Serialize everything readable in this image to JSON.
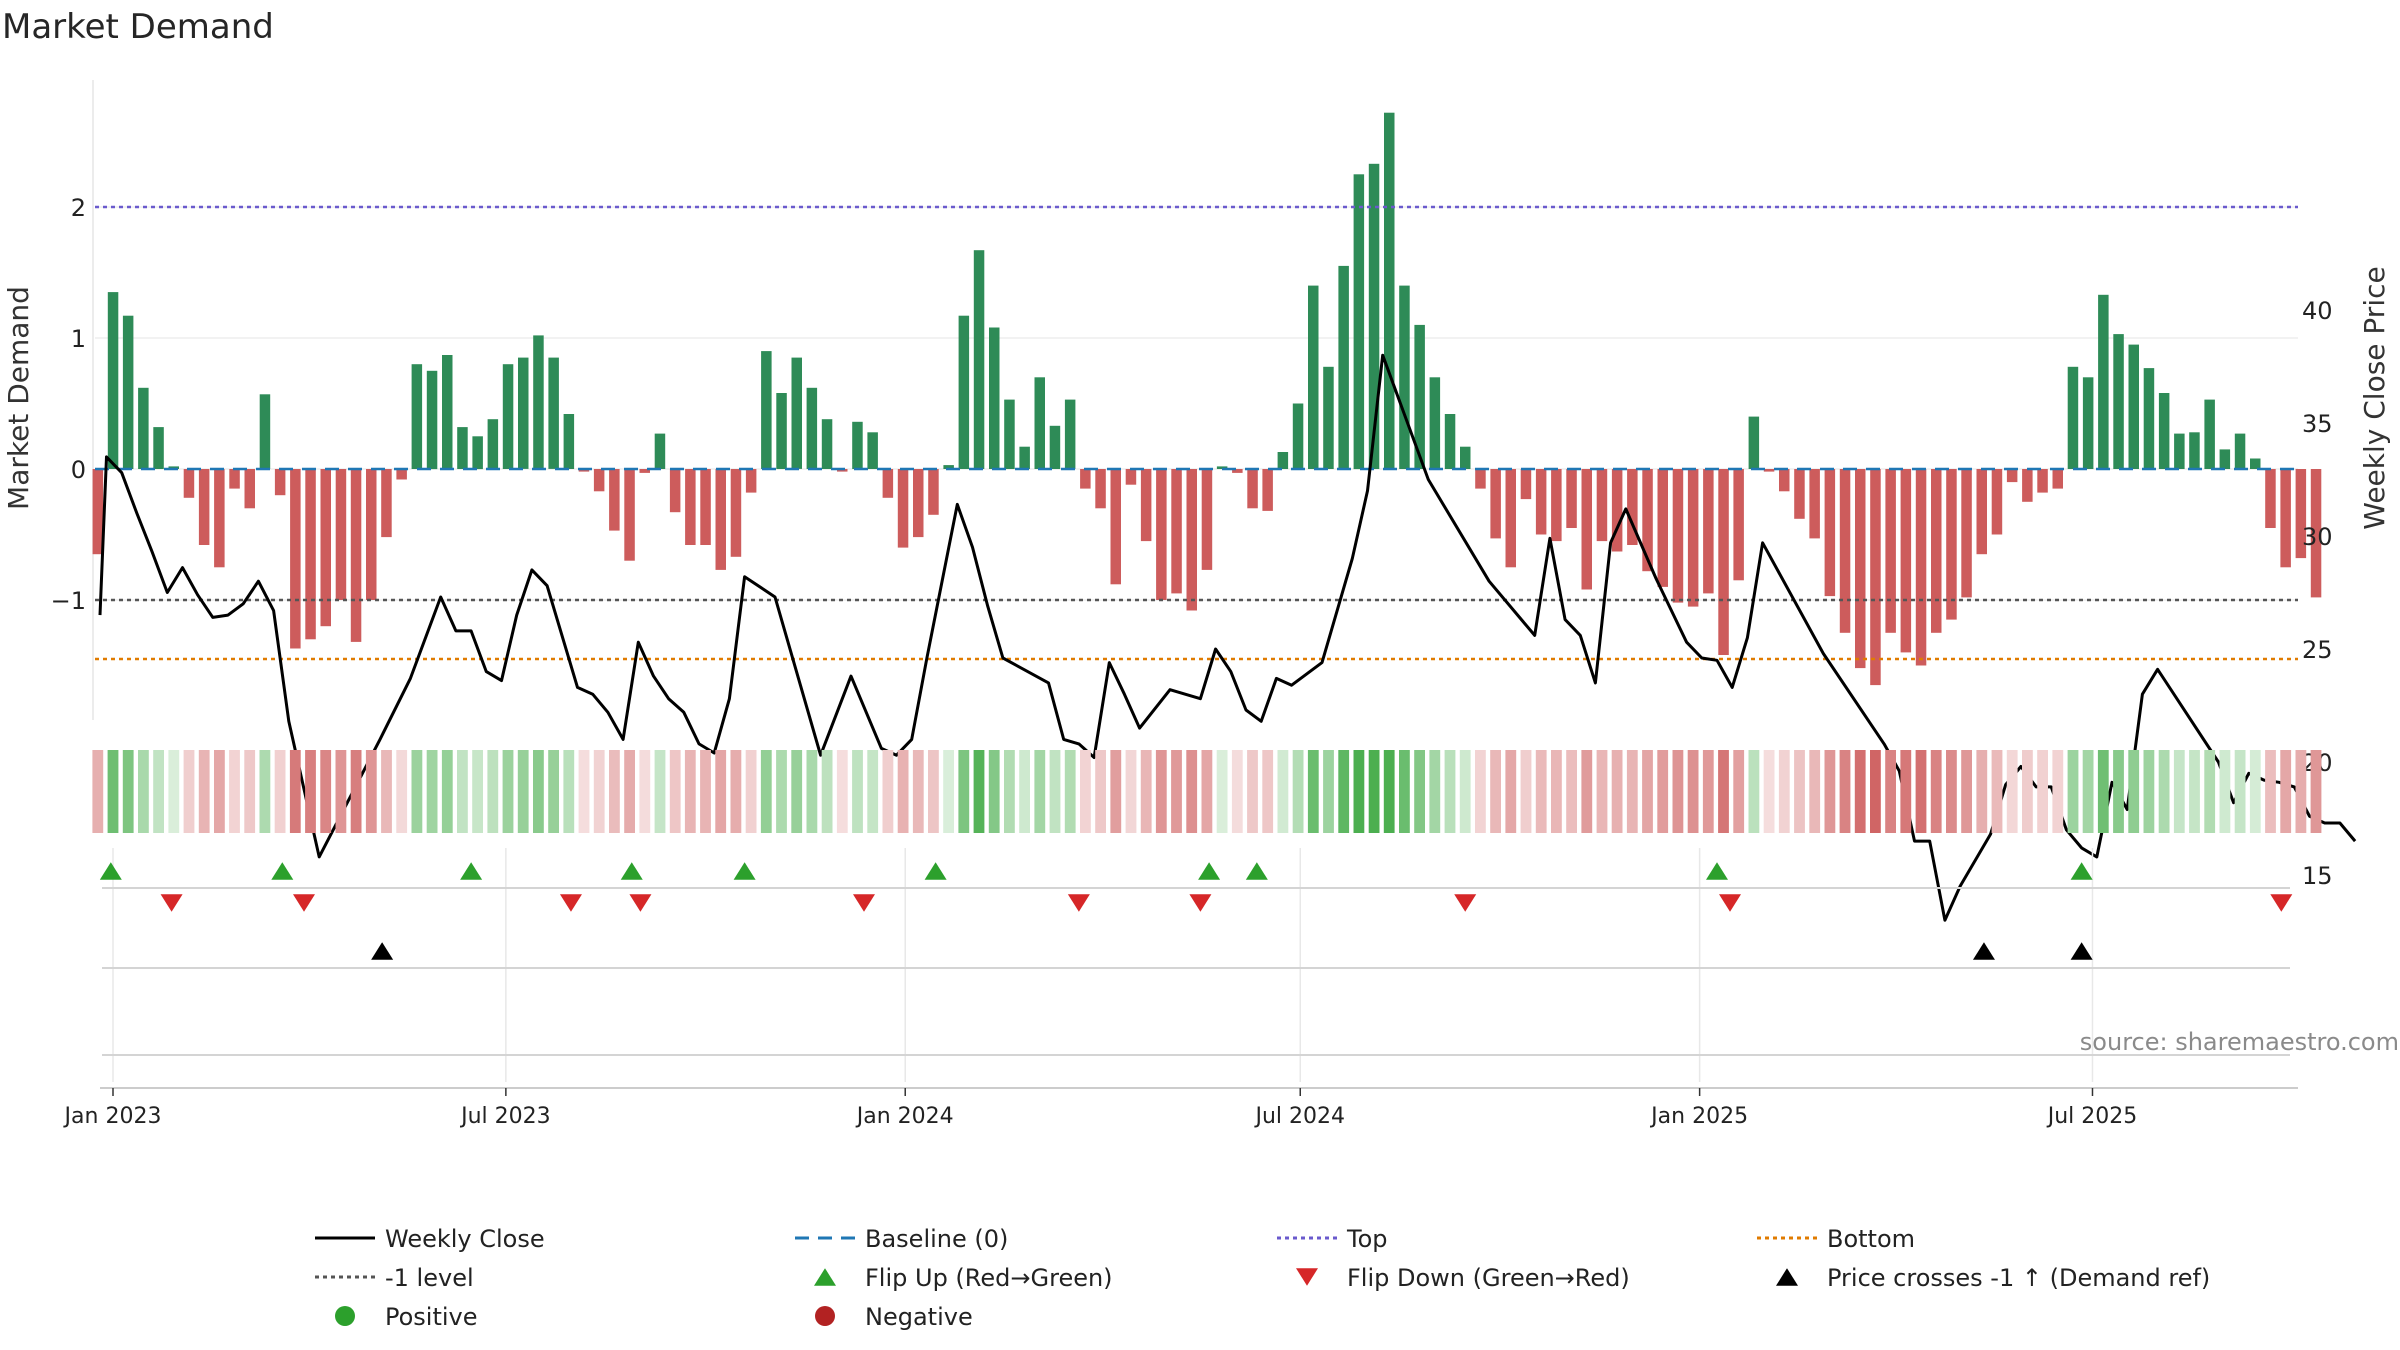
{
  "chart_data": {
    "type": "bar",
    "title": "Market Demand",
    "ylabel_left": "Market Demand",
    "ylabel_right": "Weekly Close Price",
    "yticks_left": [
      "2",
      "1",
      "0",
      "−1"
    ],
    "yticks_left_values": [
      2,
      1,
      0,
      -1
    ],
    "yticks_right": [
      "40",
      "35",
      "30",
      "25",
      "20",
      "15"
    ],
    "yticks_right_values": [
      40,
      35,
      30,
      25,
      20,
      15
    ],
    "ylim_left": [
      -1.9,
      2.95
    ],
    "ylim_right": [
      12,
      40
    ],
    "reference_lines": {
      "top": 2.0,
      "minus_one": -1.0,
      "bottom": -1.45,
      "baseline": 0
    },
    "x_start": "2023-01-01",
    "x_end": "2025-09-30",
    "date_ticks": [
      {
        "label": "Jan 2023",
        "date": "2023-01-01"
      },
      {
        "label": "Jul 2023",
        "date": "2023-07-01"
      },
      {
        "label": "Jan 2024",
        "date": "2024-01-01"
      },
      {
        "label": "Jul 2024",
        "date": "2024-07-01"
      },
      {
        "label": "Jan 2025",
        "date": "2025-01-01"
      },
      {
        "label": "Jul 2025",
        "date": "2025-07-01"
      }
    ],
    "demand_series_start": "2022-12-25",
    "demand_weekly": [
      -0.65,
      1.35,
      1.17,
      0.62,
      0.32,
      0.02,
      -0.22,
      -0.58,
      -0.75,
      -0.15,
      -0.3,
      0.57,
      -0.2,
      -1.37,
      -1.3,
      -1.2,
      -1.0,
      -1.32,
      -1.0,
      -0.52,
      -0.08,
      0.8,
      0.75,
      0.87,
      0.32,
      0.25,
      0.38,
      0.8,
      0.85,
      1.02,
      0.85,
      0.42,
      -0.02,
      -0.17,
      -0.47,
      -0.7,
      -0.03,
      0.27,
      -0.33,
      -0.58,
      -0.58,
      -0.77,
      -0.67,
      -0.18,
      0.9,
      0.58,
      0.85,
      0.62,
      0.38,
      -0.02,
      0.36,
      0.28,
      -0.22,
      -0.6,
      -0.52,
      -0.35,
      0.03,
      1.17,
      1.67,
      1.08,
      0.53,
      0.17,
      0.7,
      0.33,
      0.53,
      -0.15,
      -0.3,
      -0.88,
      -0.12,
      -0.55,
      -1.0,
      -0.95,
      -1.08,
      -0.77,
      0.02,
      -0.03,
      -0.3,
      -0.32,
      0.13,
      0.5,
      1.4,
      0.78,
      1.55,
      2.25,
      2.33,
      2.72,
      1.4,
      1.1,
      0.7,
      0.42,
      0.17,
      -0.15,
      -0.53,
      -0.75,
      -0.23,
      -0.5,
      -0.55,
      -0.45,
      -0.92,
      -0.55,
      -0.63,
      -0.58,
      -0.78,
      -0.9,
      -1.02,
      -1.05,
      -0.95,
      -1.42,
      -0.85,
      0.4,
      -0.02,
      -0.17,
      -0.38,
      -0.53,
      -0.97,
      -1.25,
      -1.52,
      -1.65,
      -1.25,
      -1.4,
      -1.5,
      -1.25,
      -1.15,
      -0.98,
      -0.65,
      -0.5,
      -0.1,
      -0.25,
      -0.18,
      -0.15,
      0.78,
      0.7,
      1.33,
      1.03,
      0.95,
      0.77,
      0.58,
      0.27,
      0.28,
      0.53,
      0.15,
      0.27,
      0.08,
      -0.45,
      -0.75,
      -0.68,
      -0.98
    ],
    "close_points": [
      [
        "2022-12-26",
        26.5
      ],
      [
        "2022-12-29",
        33.5
      ],
      [
        "2023-01-05",
        32.8
      ],
      [
        "2023-01-12",
        31.0
      ],
      [
        "2023-01-19",
        29.3
      ],
      [
        "2023-01-26",
        27.5
      ],
      [
        "2023-02-02",
        28.6
      ],
      [
        "2023-02-09",
        27.4
      ],
      [
        "2023-02-16",
        26.4
      ],
      [
        "2023-02-23",
        26.5
      ],
      [
        "2023-03-02",
        27.0
      ],
      [
        "2023-03-09",
        28.0
      ],
      [
        "2023-03-16",
        26.7
      ],
      [
        "2023-03-23",
        21.8
      ],
      [
        "2023-04-06",
        15.8
      ],
      [
        "2023-05-04",
        21.0
      ],
      [
        "2023-05-18",
        23.7
      ],
      [
        "2023-06-01",
        27.3
      ],
      [
        "2023-06-08",
        25.8
      ],
      [
        "2023-06-15",
        25.8
      ],
      [
        "2023-06-22",
        24.0
      ],
      [
        "2023-06-29",
        23.6
      ],
      [
        "2023-07-06",
        26.5
      ],
      [
        "2023-07-13",
        28.5
      ],
      [
        "2023-07-20",
        27.8
      ],
      [
        "2023-08-03",
        23.3
      ],
      [
        "2023-08-10",
        23.0
      ],
      [
        "2023-08-17",
        22.2
      ],
      [
        "2023-08-24",
        21.0
      ],
      [
        "2023-08-31",
        25.3
      ],
      [
        "2023-09-07",
        23.8
      ],
      [
        "2023-09-14",
        22.8
      ],
      [
        "2023-09-21",
        22.2
      ],
      [
        "2023-09-28",
        20.8
      ],
      [
        "2023-10-05",
        20.4
      ],
      [
        "2023-10-12",
        22.8
      ],
      [
        "2023-10-19",
        28.2
      ],
      [
        "2023-11-02",
        27.3
      ],
      [
        "2023-11-23",
        20.3
      ],
      [
        "2023-12-07",
        23.8
      ],
      [
        "2023-12-21",
        20.6
      ],
      [
        "2023-12-28",
        20.3
      ],
      [
        "2024-01-04",
        21.0
      ],
      [
        "2024-01-11",
        24.6
      ],
      [
        "2024-01-25",
        31.4
      ],
      [
        "2024-02-01",
        29.5
      ],
      [
        "2024-02-08",
        26.9
      ],
      [
        "2024-02-15",
        24.6
      ],
      [
        "2024-03-07",
        23.5
      ],
      [
        "2024-03-14",
        21.0
      ],
      [
        "2024-03-21",
        20.8
      ],
      [
        "2024-03-28",
        20.2
      ],
      [
        "2024-04-04",
        24.4
      ],
      [
        "2024-04-11",
        23.0
      ],
      [
        "2024-04-18",
        21.5
      ],
      [
        "2024-05-02",
        23.2
      ],
      [
        "2024-05-16",
        22.8
      ],
      [
        "2024-05-23",
        25.0
      ],
      [
        "2024-05-30",
        24.0
      ],
      [
        "2024-06-06",
        22.3
      ],
      [
        "2024-06-13",
        21.8
      ],
      [
        "2024-06-20",
        23.7
      ],
      [
        "2024-06-27",
        23.4
      ],
      [
        "2024-07-11",
        24.4
      ],
      [
        "2024-07-25",
        29.0
      ],
      [
        "2024-08-01",
        32.0
      ],
      [
        "2024-08-08",
        38.0
      ],
      [
        "2024-08-29",
        32.5
      ],
      [
        "2024-09-26",
        28.0
      ],
      [
        "2024-10-17",
        25.6
      ],
      [
        "2024-10-24",
        29.9
      ],
      [
        "2024-10-31",
        26.3
      ],
      [
        "2024-11-07",
        25.6
      ],
      [
        "2024-11-14",
        23.5
      ],
      [
        "2024-11-21",
        29.7
      ],
      [
        "2024-11-28",
        31.2
      ],
      [
        "2024-12-12",
        28.1
      ],
      [
        "2024-12-26",
        25.3
      ],
      [
        "2025-01-02",
        24.6
      ],
      [
        "2025-01-09",
        24.5
      ],
      [
        "2025-01-16",
        23.3
      ],
      [
        "2025-01-23",
        25.5
      ],
      [
        "2025-01-30",
        29.7
      ],
      [
        "2025-02-27",
        24.8
      ],
      [
        "2025-03-27",
        20.8
      ],
      [
        "2025-04-03",
        19.6
      ],
      [
        "2025-04-10",
        16.5
      ],
      [
        "2025-04-17",
        16.5
      ],
      [
        "2025-04-24",
        13.0
      ],
      [
        "2025-05-01",
        14.5
      ],
      [
        "2025-05-15",
        16.8
      ],
      [
        "2025-05-22",
        19.0
      ],
      [
        "2025-05-29",
        19.8
      ],
      [
        "2025-06-05",
        18.9
      ],
      [
        "2025-06-12",
        18.9
      ],
      [
        "2025-06-19",
        17.0
      ],
      [
        "2025-06-26",
        16.2
      ],
      [
        "2025-07-03",
        15.8
      ],
      [
        "2025-07-10",
        19.1
      ],
      [
        "2025-07-17",
        17.9
      ],
      [
        "2025-07-24",
        23.0
      ],
      [
        "2025-07-31",
        24.1
      ],
      [
        "2025-08-28",
        20.0
      ],
      [
        "2025-09-04",
        18.2
      ],
      [
        "2025-09-11",
        19.5
      ],
      [
        "2025-09-18",
        19.2
      ],
      [
        "2025-09-25",
        19.1
      ],
      [
        "2025-10-02",
        18.9
      ],
      [
        "2025-10-09",
        17.6
      ],
      [
        "2025-10-16",
        17.3
      ],
      [
        "2025-10-23",
        17.3
      ],
      [
        "2025-10-30",
        16.5
      ]
    ],
    "flip_up_dates": [
      "2022-12-31",
      "2023-03-20",
      "2023-06-15",
      "2023-08-28",
      "2023-10-19",
      "2024-01-15",
      "2024-05-20",
      "2024-06-11",
      "2025-01-09",
      "2025-06-26"
    ],
    "flip_down_dates": [
      "2023-01-28",
      "2023-03-30",
      "2023-07-31",
      "2023-09-01",
      "2023-12-13",
      "2024-03-21",
      "2024-05-16",
      "2024-09-15",
      "2025-01-15",
      "2025-09-26"
    ],
    "price_cross_dates": [
      "2023-05-05",
      "2025-05-12",
      "2025-06-26"
    ],
    "source": "source: sharemaestro.com",
    "legend": [
      {
        "label": "Weekly Close",
        "symbol": "solid-line",
        "color": "#000000"
      },
      {
        "label": "Baseline (0)",
        "symbol": "dashed-line",
        "color": "#1f77b4"
      },
      {
        "label": "Top",
        "symbol": "dotted-line",
        "color": "#6a5acd"
      },
      {
        "label": "Bottom",
        "symbol": "dotted-line",
        "color": "#e07b00"
      },
      {
        "label": "-1 level",
        "symbol": "dotted-line",
        "color": "#555555"
      },
      {
        "label": "Flip Up (Red→Green)",
        "symbol": "triangle-up",
        "color": "#2ca02c"
      },
      {
        "label": "Flip Down (Green→Red)",
        "symbol": "triangle-down",
        "color": "#d62728"
      },
      {
        "label": "Price crosses -1 ↑ (Demand ref)",
        "symbol": "triangle-up",
        "color": "#000000"
      },
      {
        "label": "Positive",
        "symbol": "circle",
        "color": "#2ca02c"
      },
      {
        "label": "Negative",
        "symbol": "circle",
        "color": "#b22222"
      }
    ],
    "colors": {
      "positive_bar": "#2e8b57",
      "negative_bar": "#cd5c5c",
      "close_line": "#000000",
      "baseline": "#1f77b4",
      "top": "#6a5acd",
      "bottom": "#e07b00",
      "minus_one": "#555555",
      "flip_up": "#2ca02c",
      "flip_down": "#d62728",
      "cross": "#000000"
    }
  }
}
